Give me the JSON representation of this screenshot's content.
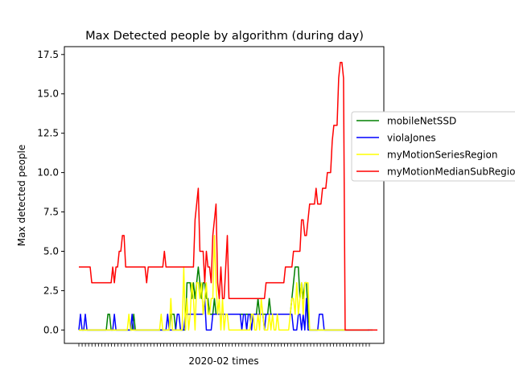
{
  "chart_data": {
    "type": "line",
    "title": "Max Detected people by algorithm (during day)",
    "xlabel": "2020-02 times",
    "ylabel": "Max detected people",
    "ylim": [
      -0.85,
      18.0
    ],
    "yticks": [
      0.0,
      2.5,
      5.0,
      7.5,
      10.0,
      12.5,
      15.0,
      17.5
    ],
    "ytick_labels": [
      "0.0",
      "2.5",
      "5.0",
      "7.5",
      "10.0",
      "12.5",
      "15.0",
      "17.5"
    ],
    "x_count": 181,
    "x_tick_labels_shown": false,
    "grid": false,
    "legend_position": "right, outside plot",
    "series": [
      {
        "name": "mobileNetSSD",
        "color": "#008000",
        "values": [
          0,
          0,
          0,
          0,
          0,
          0,
          0,
          0,
          0,
          0,
          0,
          0,
          0,
          0,
          0,
          0,
          0,
          0,
          1,
          1,
          0,
          0,
          0,
          0,
          0,
          0,
          0,
          0,
          0,
          0,
          0,
          0,
          0,
          0,
          1,
          0,
          0,
          0,
          0,
          0,
          0,
          0,
          0,
          0,
          0,
          0,
          0,
          0,
          0,
          0,
          0,
          0,
          0,
          0,
          0,
          0,
          0,
          1,
          1,
          1,
          0,
          0,
          0,
          0,
          0,
          0,
          0,
          3,
          3,
          3,
          2,
          3,
          2,
          3,
          4,
          3,
          2,
          3,
          3,
          2,
          2,
          1,
          1,
          1,
          2,
          1,
          1,
          1,
          1,
          1,
          1,
          1,
          1,
          1,
          1,
          1,
          1,
          1,
          1,
          1,
          1,
          1,
          1,
          1,
          1,
          1,
          1,
          1,
          1,
          1,
          1,
          2,
          1,
          1,
          1,
          1,
          1,
          1,
          2,
          1,
          1,
          1,
          1,
          1,
          1,
          1,
          1,
          1,
          1,
          1,
          1,
          1,
          2,
          3,
          4,
          4,
          4,
          2,
          3,
          2,
          3,
          3,
          1,
          0,
          0,
          0,
          0,
          0,
          0,
          0,
          0,
          0,
          0,
          0,
          0,
          0,
          0,
          0,
          0,
          0,
          0,
          0,
          0,
          0,
          0,
          0,
          0,
          0,
          0,
          0,
          0,
          0,
          0,
          0,
          0,
          0,
          0,
          0,
          0,
          0,
          0,
          0,
          0
        ]
      },
      {
        "name": "violaJones",
        "color": "#0000ff",
        "values": [
          0,
          1,
          0,
          0,
          1,
          0,
          0,
          0,
          0,
          0,
          0,
          0,
          0,
          0,
          0,
          0,
          0,
          0,
          0,
          0,
          0,
          0,
          1,
          0,
          0,
          0,
          0,
          0,
          0,
          0,
          0,
          0,
          0,
          1,
          0,
          0,
          0,
          0,
          0,
          0,
          0,
          0,
          0,
          0,
          0,
          0,
          0,
          0,
          0,
          0,
          0,
          0,
          0,
          0,
          0,
          1,
          0,
          0,
          0,
          0,
          0,
          1,
          1,
          0,
          0,
          0,
          1,
          1,
          1,
          1,
          1,
          1,
          1,
          1,
          1,
          1,
          1,
          1,
          2,
          0,
          0,
          0,
          0,
          1,
          1,
          1,
          1,
          1,
          1,
          1,
          1,
          1,
          1,
          1,
          1,
          1,
          1,
          1,
          1,
          1,
          1,
          0,
          1,
          1,
          0,
          1,
          1,
          0,
          1,
          1,
          1,
          1,
          1,
          1,
          1,
          0,
          1,
          1,
          1,
          1,
          1,
          1,
          1,
          1,
          1,
          1,
          1,
          1,
          1,
          1,
          1,
          1,
          1,
          0,
          0,
          0,
          1,
          1,
          0,
          1,
          0,
          2,
          0,
          0,
          0,
          0,
          0,
          0,
          0,
          1,
          1,
          1,
          0,
          0,
          0,
          0,
          0,
          0,
          0,
          0,
          0,
          0,
          0,
          0,
          0,
          0,
          0,
          0,
          0,
          0,
          0,
          0,
          0,
          0,
          0,
          0,
          0,
          0,
          0,
          0,
          0
        ]
      },
      {
        "name": "myMotionSeriesRegion",
        "color": "#ffff00",
        "values": [
          0,
          0,
          0,
          0,
          0,
          0,
          0,
          0,
          0,
          0,
          0,
          0,
          0,
          0,
          0,
          0,
          0,
          0,
          0,
          0,
          0,
          0,
          0,
          0,
          0,
          0,
          0,
          0,
          0,
          0,
          0,
          1,
          0,
          0,
          0,
          0,
          0,
          0,
          0,
          0,
          0,
          0,
          0,
          0,
          0,
          0,
          0,
          0,
          0,
          0,
          0,
          1,
          0,
          0,
          0,
          0,
          0,
          2,
          0,
          0,
          0,
          0,
          0,
          0,
          0,
          4,
          0,
          2,
          0,
          1,
          3,
          2,
          0,
          3,
          3,
          2,
          3,
          1,
          2,
          3,
          1,
          1,
          2,
          2,
          6,
          3,
          1,
          2,
          0,
          2,
          0,
          1,
          1,
          0,
          0,
          0,
          0,
          0,
          0,
          0,
          0,
          0,
          0,
          0,
          0,
          0,
          0,
          1,
          1,
          0,
          0,
          1,
          0,
          2,
          1,
          0,
          0,
          0,
          1,
          0,
          1,
          0,
          0,
          1,
          0,
          0,
          0,
          0,
          0,
          0,
          0,
          1,
          2,
          2,
          1,
          3,
          1,
          2,
          3,
          1,
          3,
          3,
          3,
          0,
          0,
          0,
          0,
          0,
          0,
          0,
          0,
          0,
          0,
          0,
          0,
          0,
          0,
          0,
          0,
          0,
          0,
          0,
          0,
          0,
          0,
          0,
          0,
          0,
          0,
          0,
          0,
          0,
          0,
          0,
          0,
          0,
          0,
          0,
          0,
          0
        ]
      },
      {
        "name": "myMotionMedianSubRegion",
        "color": "#ff0000",
        "values": [
          4,
          4,
          4,
          4,
          4,
          4,
          4,
          4,
          3,
          3,
          3,
          3,
          3,
          3,
          3,
          3,
          3,
          3,
          3,
          3,
          3,
          4,
          3,
          4,
          4,
          5,
          5,
          6,
          6,
          4,
          4,
          4,
          4,
          4,
          4,
          4,
          4,
          4,
          4,
          4,
          4,
          4,
          3,
          4,
          4,
          4,
          4,
          4,
          4,
          4,
          4,
          4,
          4,
          5,
          4,
          4,
          4,
          4,
          4,
          4,
          4,
          4,
          4,
          4,
          4,
          4,
          4,
          4,
          4,
          4,
          4,
          4,
          7,
          8,
          9,
          5,
          5,
          5,
          3,
          5,
          4,
          4,
          3,
          6,
          7,
          8,
          3,
          2,
          4,
          2,
          2,
          4,
          6,
          2,
          2,
          2,
          2,
          2,
          2,
          2,
          2,
          2,
          2,
          2,
          2,
          2,
          2,
          2,
          2,
          2,
          2,
          2,
          2,
          2,
          2,
          2,
          3,
          3,
          3,
          3,
          3,
          3,
          3,
          3,
          3,
          3,
          3,
          3,
          4,
          4,
          4,
          4,
          4,
          5,
          5,
          5,
          5,
          5,
          7,
          7,
          6,
          6,
          7,
          8,
          8,
          8,
          8,
          9,
          8,
          8,
          8,
          9,
          9,
          9,
          10,
          10,
          10,
          12,
          13,
          13,
          13,
          16,
          17,
          17,
          16,
          0,
          0,
          0,
          0,
          0,
          0,
          0,
          0,
          0,
          0,
          0,
          0,
          0,
          0,
          0,
          0,
          0,
          0,
          0,
          0,
          0
        ]
      }
    ]
  }
}
